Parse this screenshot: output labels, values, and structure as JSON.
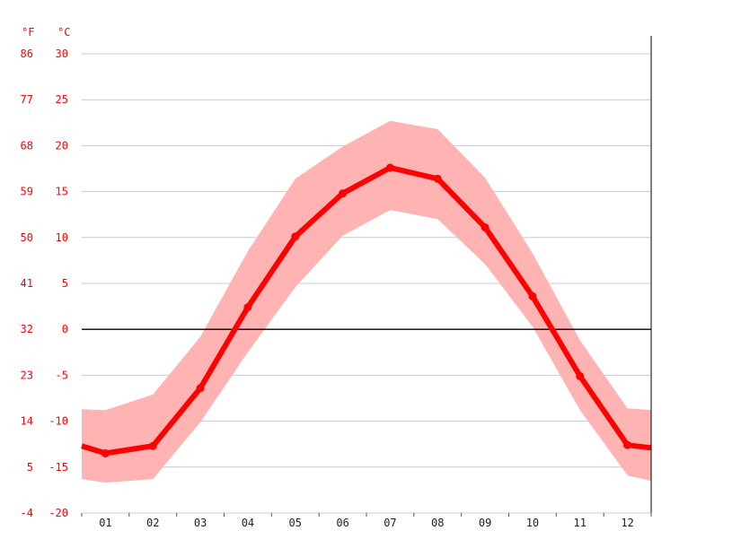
{
  "chart_data": {
    "type": "line",
    "unit_left": "°F",
    "unit_right": "°C",
    "x": [
      "01",
      "02",
      "03",
      "04",
      "05",
      "06",
      "07",
      "08",
      "09",
      "10",
      "11",
      "12"
    ],
    "ylim": [
      -20,
      30
    ],
    "y_ticks_c": [
      "30",
      "25",
      "20",
      "15",
      "10",
      "5",
      "0",
      "-5",
      "-10",
      "-15",
      "-20"
    ],
    "y_ticks_f": [
      "86",
      "77",
      "68",
      "59",
      "50",
      "41",
      "32",
      "23",
      "14",
      "5",
      "-4"
    ],
    "series": [
      {
        "values": [
          -13.5,
          -12.7,
          -6.4,
          2.4,
          10.1,
          14.8,
          17.6,
          16.4,
          11.1,
          3.6,
          -5.1,
          -12.6
        ]
      }
    ],
    "band_low": [
      -16.7,
      -16.3,
      -10.1,
      -2.5,
      4.6,
      10.2,
      13.0,
      12.0,
      7.1,
      0.3,
      -8.8,
      -15.9
    ],
    "band_high": [
      -8.8,
      -7.1,
      -0.8,
      8.5,
      16.4,
      19.9,
      22.7,
      21.8,
      16.5,
      8.3,
      -1.2,
      -8.6
    ],
    "edge_left": {
      "value": -12.7,
      "low": -16.3,
      "high": -8.7
    },
    "edge_right": {
      "value": -12.9,
      "low": -16.5,
      "high": -8.8
    },
    "colors": {
      "line": "#ff0000",
      "band": "#ffb3b3",
      "zero": "#000000",
      "grid": "#cccccc"
    },
    "grid": true
  }
}
